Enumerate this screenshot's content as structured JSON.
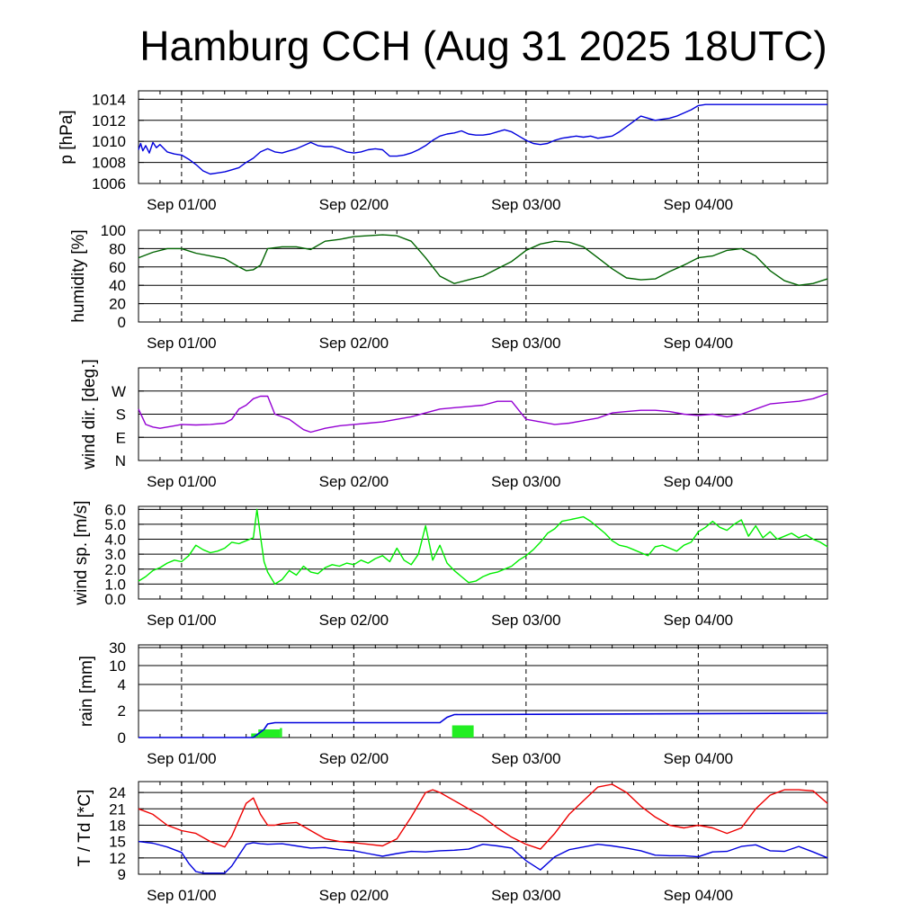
{
  "title": "Hamburg CCH (Aug 31 2025 18UTC)",
  "colors": {
    "pressure": "#0000dd",
    "humidity": "#006400",
    "wind_dir": "#9400d3",
    "wind_speed": "#00ee00",
    "rain_bar": "#22ee22",
    "rain_line": "#0000dd",
    "temperature": "#ee0000",
    "dewpoint": "#0000dd"
  },
  "chart_data": [
    {
      "type": "line",
      "id": "pressure",
      "ylabel": "p [hPa]",
      "ylim": [
        1006,
        1014.8
      ],
      "yticks": [
        1006,
        1008,
        1010,
        1012,
        1014
      ],
      "ytick_labels": [
        "1006",
        "1008",
        "1010",
        "1012",
        "1014"
      ],
      "x_unit": "hours since Aug 31 18UTC",
      "xlim": [
        0,
        96
      ],
      "x_tick_positions": [
        6,
        30,
        54,
        78
      ],
      "x_tick_labels": [
        "Sep 01/00",
        "Sep 02/00",
        "Sep 03/00",
        "Sep 04/00"
      ],
      "grid": "horizontal solid, vertical dashed",
      "series": [
        {
          "x": [
            0,
            0.3,
            0.6,
            1,
            1.5,
            2,
            2.5,
            3,
            4,
            5,
            6,
            7,
            8,
            9,
            10,
            11,
            12,
            13,
            14,
            15,
            16,
            17,
            18,
            19,
            20,
            21,
            22,
            23,
            24,
            25,
            26,
            27,
            28,
            29,
            30,
            31,
            32,
            33,
            34,
            35,
            36,
            37,
            38,
            39,
            40,
            41,
            42,
            43,
            44,
            45,
            46,
            47,
            48,
            49,
            50,
            51,
            52,
            53,
            54,
            55,
            56,
            57,
            58,
            59,
            60,
            61,
            62,
            63,
            64,
            65,
            66,
            67,
            68,
            69,
            70,
            71,
            72,
            73,
            74,
            75,
            76,
            77,
            78,
            79,
            80,
            81,
            82,
            83,
            84,
            85,
            86,
            87,
            88,
            89,
            90,
            91,
            92,
            93,
            94,
            95,
            96
          ],
          "values": [
            1009.2,
            1009.8,
            1009.1,
            1009.6,
            1008.9,
            1009.9,
            1009.4,
            1009.7,
            1009.0,
            1008.8,
            1008.7,
            1008.3,
            1007.8,
            1007.2,
            1006.9,
            1007.0,
            1007.1,
            1007.3,
            1007.5,
            1008.0,
            1008.4,
            1009.0,
            1009.3,
            1009.0,
            1008.9,
            1009.1,
            1009.3,
            1009.6,
            1009.9,
            1009.6,
            1009.5,
            1009.5,
            1009.3,
            1009.0,
            1008.9,
            1009.0,
            1009.2,
            1009.3,
            1009.2,
            1008.6,
            1008.6,
            1008.7,
            1008.9,
            1009.2,
            1009.6,
            1010.1,
            1010.5,
            1010.7,
            1010.8,
            1011.0,
            1010.7,
            1010.6,
            1010.6,
            1010.7,
            1010.9,
            1011.1,
            1010.9,
            1010.5,
            1010.1,
            1009.8,
            1009.7,
            1009.8,
            1010.1,
            1010.3,
            1010.4,
            1010.5,
            1010.4,
            1010.5,
            1010.3,
            1010.4,
            1010.5,
            1010.9,
            1011.4,
            1011.9,
            1012.4,
            1012.2,
            1012.0,
            1012.1,
            1012.2,
            1012.4,
            1012.7,
            1013.0,
            1013.4,
            1013.5,
            1013.5,
            1013.5,
            1013.5,
            1013.5,
            1013.5,
            1013.5,
            1013.5,
            1013.5,
            1013.5,
            1013.5,
            1013.5,
            1013.5,
            1013.5,
            1013.5,
            1013.5,
            1013.5,
            1013.5
          ]
        }
      ]
    },
    {
      "type": "line",
      "id": "humidity",
      "ylabel": "humidity [%]",
      "ylim": [
        0,
        100
      ],
      "yticks": [
        0,
        20,
        40,
        60,
        80,
        100
      ],
      "ytick_labels": [
        "0",
        "20",
        "40",
        "60",
        "80",
        "100"
      ],
      "xlim": [
        0,
        96
      ],
      "x_tick_positions": [
        6,
        30,
        54,
        78
      ],
      "x_tick_labels": [
        "Sep 01/00",
        "Sep 02/00",
        "Sep 03/00",
        "Sep 04/00"
      ],
      "series": [
        {
          "x": [
            0,
            2,
            4,
            6,
            8,
            10,
            12,
            14,
            15,
            16,
            17,
            18,
            20,
            22,
            24,
            26,
            28,
            30,
            32,
            34,
            36,
            38,
            40,
            42,
            44,
            46,
            48,
            50,
            52,
            54,
            56,
            58,
            60,
            62,
            64,
            66,
            68,
            70,
            72,
            74,
            76,
            78,
            80,
            82,
            84,
            86,
            88,
            90,
            92,
            94,
            96
          ],
          "values": [
            70,
            76,
            80,
            80,
            75,
            72,
            69,
            60,
            56,
            57,
            62,
            80,
            82,
            82,
            79,
            88,
            90,
            93,
            94,
            95,
            94,
            88,
            70,
            50,
            42,
            46,
            50,
            58,
            66,
            78,
            85,
            88,
            87,
            82,
            70,
            58,
            48,
            46,
            47,
            55,
            62,
            70,
            72,
            78,
            80,
            72,
            56,
            45,
            40,
            42,
            47
          ]
        }
      ]
    },
    {
      "type": "line",
      "id": "wind_dir",
      "ylabel": "wind dir. [deg.]",
      "ylim": [
        0,
        360
      ],
      "yticks": [
        0,
        90,
        180,
        270
      ],
      "ytick_labels": [
        "N",
        "E",
        "S",
        "W"
      ],
      "xlim": [
        0,
        96
      ],
      "x_tick_positions": [
        6,
        30,
        54,
        78
      ],
      "x_tick_labels": [
        "Sep 01/00",
        "Sep 02/00",
        "Sep 03/00",
        "Sep 04/00"
      ],
      "series": [
        {
          "x": [
            0,
            1,
            2,
            3,
            4,
            5,
            6,
            8,
            10,
            12,
            13,
            14,
            15,
            16,
            17,
            18,
            19,
            20,
            21,
            22,
            23,
            24,
            26,
            28,
            30,
            32,
            34,
            36,
            38,
            40,
            42,
            44,
            46,
            48,
            50,
            52,
            54,
            56,
            58,
            60,
            62,
            64,
            66,
            68,
            70,
            72,
            74,
            76,
            78,
            80,
            82,
            84,
            86,
            88,
            90,
            92,
            94,
            96
          ],
          "values": [
            200,
            140,
            130,
            125,
            130,
            135,
            140,
            138,
            140,
            145,
            160,
            200,
            215,
            240,
            250,
            250,
            180,
            170,
            160,
            140,
            120,
            110,
            125,
            135,
            140,
            145,
            150,
            160,
            170,
            185,
            200,
            205,
            210,
            215,
            230,
            230,
            160,
            150,
            140,
            145,
            155,
            165,
            185,
            190,
            195,
            195,
            190,
            180,
            175,
            180,
            170,
            180,
            200,
            220,
            225,
            230,
            240,
            260
          ]
        }
      ]
    },
    {
      "type": "line",
      "id": "wind_speed",
      "ylabel": "wind sp. [m/s]",
      "ylim": [
        0,
        6.2
      ],
      "yticks": [
        0,
        1,
        2,
        3,
        4,
        5,
        6
      ],
      "ytick_labels": [
        "0.0",
        "1.0",
        "2.0",
        "3.0",
        "4.0",
        "5.0",
        "6.0"
      ],
      "xlim": [
        0,
        96
      ],
      "x_tick_positions": [
        6,
        30,
        54,
        78
      ],
      "x_tick_labels": [
        "Sep 01/00",
        "Sep 02/00",
        "Sep 03/00",
        "Sep 04/00"
      ],
      "series": [
        {
          "x": [
            0,
            1,
            2,
            3,
            4,
            5,
            6,
            7,
            8,
            9,
            10,
            11,
            12,
            13,
            14,
            15,
            16,
            16.5,
            17,
            17.5,
            18,
            19,
            20,
            21,
            22,
            23,
            24,
            25,
            26,
            27,
            28,
            29,
            30,
            31,
            32,
            33,
            34,
            35,
            36,
            37,
            38,
            39,
            40,
            41,
            42,
            43,
            44,
            45,
            46,
            47,
            48,
            49,
            50,
            51,
            52,
            53,
            54,
            55,
            56,
            57,
            58,
            59,
            60,
            61,
            62,
            63,
            64,
            65,
            66,
            67,
            68,
            69,
            70,
            71,
            72,
            73,
            74,
            75,
            76,
            77,
            78,
            79,
            80,
            81,
            82,
            83,
            84,
            85,
            86,
            87,
            88,
            89,
            90,
            91,
            92,
            93,
            94,
            95,
            96
          ],
          "values": [
            1.2,
            1.5,
            1.9,
            2.1,
            2.4,
            2.6,
            2.5,
            2.9,
            3.6,
            3.3,
            3.1,
            3.2,
            3.4,
            3.8,
            3.7,
            3.9,
            4.1,
            6.0,
            4.2,
            2.5,
            1.8,
            1.0,
            1.3,
            1.9,
            1.6,
            2.2,
            1.8,
            1.7,
            2.1,
            2.3,
            2.2,
            2.4,
            2.3,
            2.6,
            2.4,
            2.7,
            2.9,
            2.5,
            3.4,
            2.6,
            2.3,
            3.0,
            4.9,
            2.6,
            3.6,
            2.4,
            1.9,
            1.5,
            1.1,
            1.2,
            1.5,
            1.7,
            1.8,
            2.0,
            2.2,
            2.6,
            2.9,
            3.3,
            3.8,
            4.4,
            4.7,
            5.2,
            5.3,
            5.4,
            5.5,
            5.2,
            4.8,
            4.4,
            3.9,
            3.6,
            3.5,
            3.3,
            3.1,
            2.9,
            3.5,
            3.6,
            3.4,
            3.2,
            3.6,
            3.8,
            4.5,
            4.8,
            5.2,
            4.8,
            4.6,
            5.0,
            5.3,
            4.2,
            4.9,
            4.1,
            4.5,
            4.0,
            4.2,
            4.4,
            4.1,
            4.3,
            4.0,
            3.8,
            3.5
          ]
        }
      ]
    },
    {
      "type": "bar+line",
      "id": "rain",
      "ylabel": "rain [mm]",
      "yticks": [
        0,
        2,
        4,
        10,
        30
      ],
      "ytick_labels": [
        "0",
        "2",
        "4",
        "10",
        "30"
      ],
      "scale": "nonlinear (0,2,4,10,30 at equal-ish steps)",
      "xlim": [
        0,
        96
      ],
      "x_tick_positions": [
        6,
        30,
        54,
        78
      ],
      "x_tick_labels": [
        "Sep 01/00",
        "Sep 02/00",
        "Sep 03/00",
        "Sep 04/00"
      ],
      "bars": [
        {
          "x_start": 16.7,
          "x_end": 19.7,
          "value": 0.6
        },
        {
          "x_start": 43.7,
          "x_end": 46.7,
          "value": 0.9
        },
        {
          "x_start": 19.7,
          "x_end": 20.0,
          "value": 0.7
        },
        {
          "x_start": 15.7,
          "x_end": 16.7,
          "value": 0.3
        }
      ],
      "line": {
        "x": [
          0,
          16,
          17.5,
          18,
          19,
          42,
          43,
          44,
          96
        ],
        "values": [
          0,
          0,
          0.6,
          1.0,
          1.1,
          1.1,
          1.5,
          1.7,
          1.8
        ]
      }
    },
    {
      "type": "line",
      "id": "temperature",
      "ylabel": "T / Td [*C]",
      "ylim": [
        9,
        26
      ],
      "yticks": [
        9,
        12,
        15,
        18,
        21,
        24
      ],
      "ytick_labels": [
        "9",
        "12",
        "15",
        "18",
        "21",
        "24"
      ],
      "xlim": [
        0,
        96
      ],
      "x_tick_positions": [
        6,
        30,
        54,
        78
      ],
      "x_tick_labels": [
        "Sep 01/00",
        "Sep 02/00",
        "Sep 03/00",
        "Sep 04/00"
      ],
      "series": [
        {
          "x": [
            0,
            2,
            4,
            6,
            8,
            10,
            12,
            13,
            14,
            15,
            16,
            17,
            18,
            19,
            20,
            22,
            24,
            26,
            28,
            30,
            32,
            34,
            36,
            38,
            40,
            41,
            42,
            44,
            46,
            48,
            50,
            52,
            54,
            56,
            58,
            60,
            62,
            64,
            66,
            68,
            70,
            72,
            74,
            76,
            78,
            80,
            82,
            84,
            86,
            88,
            90,
            92,
            94,
            96
          ],
          "values": [
            21,
            20,
            18,
            17,
            16.5,
            15,
            14,
            16,
            19,
            22,
            23,
            20,
            18,
            18,
            18.3,
            18.5,
            17,
            15.5,
            15,
            14.8,
            14.5,
            14.2,
            15.5,
            19.5,
            24,
            24.5,
            24,
            22.5,
            21,
            19.5,
            17.5,
            15.8,
            14.5,
            13.6,
            16.5,
            20,
            22.5,
            25,
            25.5,
            24,
            21.5,
            19.5,
            18,
            17.5,
            18,
            17.5,
            16.5,
            17.5,
            21,
            23.5,
            24.5,
            24.5,
            24.3,
            22
          ]
        },
        {
          "x": [
            0,
            2,
            4,
            6,
            7,
            8,
            9,
            10,
            12,
            13,
            14,
            15,
            16,
            17,
            18,
            20,
            22,
            24,
            26,
            28,
            30,
            32,
            34,
            36,
            38,
            40,
            42,
            44,
            46,
            48,
            50,
            52,
            54,
            56,
            58,
            60,
            62,
            64,
            66,
            68,
            70,
            72,
            74,
            76,
            78,
            80,
            82,
            84,
            86,
            88,
            90,
            92,
            94,
            96
          ],
          "values": [
            15,
            14.7,
            14,
            13,
            11,
            9.5,
            9.2,
            9.2,
            9.2,
            10.5,
            12.5,
            14.5,
            14.8,
            14.6,
            14.5,
            14.6,
            14.2,
            13.8,
            13.9,
            13.5,
            13.3,
            12.8,
            12.3,
            12.8,
            13.2,
            13.1,
            13.3,
            13.4,
            13.6,
            14.5,
            14.2,
            13.8,
            11.5,
            9.8,
            12.2,
            13.5,
            14.0,
            14.5,
            14.2,
            13.8,
            13.3,
            12.5,
            12.4,
            12.4,
            12.2,
            13.1,
            13.2,
            14.1,
            14.4,
            13.3,
            13.2,
            14.1,
            13.1,
            12.0
          ]
        }
      ]
    }
  ]
}
